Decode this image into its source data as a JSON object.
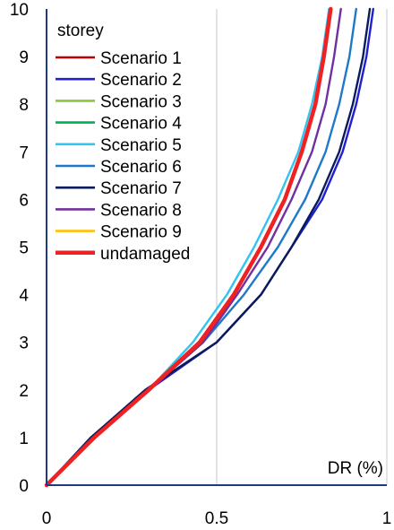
{
  "chart_data": {
    "type": "line",
    "legend_title": "storey",
    "xlabel": "DR (%)",
    "ylabel": "",
    "xlim": [
      0,
      1
    ],
    "ylim": [
      0,
      10
    ],
    "x_ticks": [
      "0",
      "0.5",
      "1"
    ],
    "y_ticks": [
      "0",
      "1",
      "2",
      "3",
      "4",
      "5",
      "6",
      "7",
      "8",
      "9",
      "10"
    ],
    "grid": "vertical",
    "legend_position": "top-left",
    "y": [
      0,
      1,
      2,
      3,
      4,
      5,
      6,
      7,
      8,
      9,
      10
    ],
    "series": [
      {
        "name": "Scenario 1",
        "color": "#c00000",
        "x": [
          0,
          0.14,
          0.3,
          0.45,
          0.55,
          0.63,
          0.7,
          0.75,
          0.79,
          0.815,
          0.835
        ]
      },
      {
        "name": "Scenario 2",
        "color": "#2020d0",
        "x": [
          0,
          0.13,
          0.3,
          0.5,
          0.63,
          0.72,
          0.81,
          0.87,
          0.91,
          0.94,
          0.96
        ]
      },
      {
        "name": "Scenario 3",
        "color": "#8cc63f",
        "x": [
          0,
          0.14,
          0.3,
          0.45,
          0.55,
          0.63,
          0.7,
          0.75,
          0.79,
          0.815,
          0.835
        ]
      },
      {
        "name": "Scenario 4",
        "color": "#00b050",
        "x": [
          0,
          0.14,
          0.3,
          0.45,
          0.55,
          0.63,
          0.7,
          0.75,
          0.79,
          0.815,
          0.835
        ]
      },
      {
        "name": "Scenario 5",
        "color": "#33c3f0",
        "x": [
          0,
          0.13,
          0.3,
          0.43,
          0.53,
          0.61,
          0.68,
          0.74,
          0.78,
          0.81,
          0.83
        ]
      },
      {
        "name": "Scenario 6",
        "color": "#1f78c8",
        "x": [
          0,
          0.14,
          0.3,
          0.46,
          0.58,
          0.68,
          0.76,
          0.82,
          0.86,
          0.89,
          0.91
        ]
      },
      {
        "name": "Scenario 7",
        "color": "#0a1a5c",
        "x": [
          0,
          0.13,
          0.29,
          0.5,
          0.63,
          0.72,
          0.8,
          0.86,
          0.9,
          0.93,
          0.95
        ]
      },
      {
        "name": "Scenario 8",
        "color": "#7030a0",
        "x": [
          0,
          0.14,
          0.3,
          0.46,
          0.56,
          0.65,
          0.72,
          0.78,
          0.82,
          0.845,
          0.865
        ]
      },
      {
        "name": "Scenario 9",
        "color": "#ffc000",
        "x": [
          0,
          0.14,
          0.3,
          0.45,
          0.55,
          0.63,
          0.7,
          0.75,
          0.79,
          0.815,
          0.835
        ]
      },
      {
        "name": "undamaged",
        "color": "#ee2222",
        "x": [
          0,
          0.14,
          0.3,
          0.45,
          0.55,
          0.63,
          0.7,
          0.75,
          0.79,
          0.815,
          0.835
        ]
      }
    ]
  }
}
